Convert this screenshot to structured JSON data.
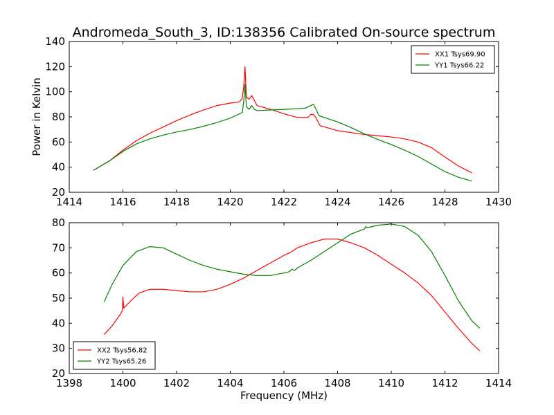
{
  "chart_data": [
    {
      "type": "line",
      "title": "Andromeda_South_3, ID:138356 Calibrated On-source spectrum",
      "xlabel": "",
      "ylabel": "Power in Kelvin",
      "xlim": [
        1414,
        1430
      ],
      "ylim": [
        20,
        140
      ],
      "xticks": [
        1414,
        1416,
        1418,
        1420,
        1422,
        1424,
        1426,
        1428,
        1430
      ],
      "yticks": [
        20,
        40,
        60,
        80,
        100,
        120,
        140
      ],
      "legend": "top-right",
      "series": [
        {
          "name": "XX1 Tsys69.90",
          "color": "#ff0000",
          "points": [
            [
              1414.9,
              37.5
            ],
            [
              1415.5,
              45
            ],
            [
              1416,
              53.5
            ],
            [
              1416.5,
              61
            ],
            [
              1417,
              67
            ],
            [
              1417.5,
              72
            ],
            [
              1418,
              77
            ],
            [
              1418.5,
              81.5
            ],
            [
              1419,
              85.5
            ],
            [
              1419.5,
              89
            ],
            [
              1420,
              91
            ],
            [
              1420.2,
              91.5
            ],
            [
              1420.35,
              92
            ],
            [
              1420.45,
              95
            ],
            [
              1420.5,
              104
            ],
            [
              1420.55,
              120
            ],
            [
              1420.6,
              96
            ],
            [
              1420.7,
              94
            ],
            [
              1420.8,
              97
            ],
            [
              1420.9,
              93
            ],
            [
              1421,
              89
            ],
            [
              1421.5,
              86
            ],
            [
              1422,
              82.5
            ],
            [
              1422.5,
              79.5
            ],
            [
              1422.9,
              79.5
            ],
            [
              1423,
              82
            ],
            [
              1423.1,
              82
            ],
            [
              1423.2,
              79
            ],
            [
              1423.35,
              73
            ],
            [
              1424,
              69
            ],
            [
              1424.5,
              67.5
            ],
            [
              1425,
              66
            ],
            [
              1425.5,
              65
            ],
            [
              1426,
              64
            ],
            [
              1426.5,
              62.5
            ],
            [
              1427,
              60
            ],
            [
              1427.5,
              55.5
            ],
            [
              1428,
              48
            ],
            [
              1428.5,
              41
            ],
            [
              1429,
              35.5
            ]
          ]
        },
        {
          "name": "YY1 Tsys66.22",
          "color": "#008000",
          "points": [
            [
              1414.9,
              37.5
            ],
            [
              1415.5,
              45
            ],
            [
              1416,
              52.5
            ],
            [
              1416.5,
              58.5
            ],
            [
              1417,
              62.5
            ],
            [
              1417.5,
              65.5
            ],
            [
              1418,
              68
            ],
            [
              1418.5,
              70
            ],
            [
              1419,
              72.5
            ],
            [
              1419.5,
              75.5
            ],
            [
              1420,
              79
            ],
            [
              1420.3,
              82
            ],
            [
              1420.45,
              83.5
            ],
            [
              1420.5,
              92
            ],
            [
              1420.55,
              106
            ],
            [
              1420.6,
              88
            ],
            [
              1420.7,
              86
            ],
            [
              1420.8,
              89
            ],
            [
              1420.9,
              86
            ],
            [
              1421,
              85
            ],
            [
              1421.5,
              85.5
            ],
            [
              1422,
              86
            ],
            [
              1422.5,
              86.5
            ],
            [
              1422.8,
              87
            ],
            [
              1423,
              89
            ],
            [
              1423.1,
              90
            ],
            [
              1423.2,
              86
            ],
            [
              1423.3,
              81
            ],
            [
              1424,
              76
            ],
            [
              1424.5,
              71.5
            ],
            [
              1425,
              66.5
            ],
            [
              1425.5,
              62
            ],
            [
              1426,
              58
            ],
            [
              1426.5,
              53.5
            ],
            [
              1427,
              48.5
            ],
            [
              1427.5,
              42.5
            ],
            [
              1428,
              36.5
            ],
            [
              1428.5,
              32
            ],
            [
              1429,
              29
            ]
          ]
        }
      ]
    },
    {
      "type": "line",
      "title": "",
      "xlabel": "Frequency (MHz)",
      "ylabel": "",
      "xlim": [
        1398,
        1414
      ],
      "ylim": [
        20,
        80
      ],
      "xticks": [
        1398,
        1400,
        1402,
        1404,
        1406,
        1408,
        1410,
        1412,
        1414
      ],
      "yticks": [
        20,
        30,
        40,
        50,
        60,
        70,
        80
      ],
      "legend": "bottom-left",
      "series": [
        {
          "name": "XX2 Tsys56.82",
          "color": "#ff0000",
          "points": [
            [
              1399.3,
              35.5
            ],
            [
              1399.6,
              39
            ],
            [
              1399.9,
              43.5
            ],
            [
              1399.98,
              45
            ],
            [
              1400,
              50.5
            ],
            [
              1400.03,
              46
            ],
            [
              1400.3,
              49
            ],
            [
              1400.6,
              52
            ],
            [
              1401,
              53.5
            ],
            [
              1401.5,
              53.5
            ],
            [
              1402,
              53
            ],
            [
              1402.5,
              52.5
            ],
            [
              1403,
              52.5
            ],
            [
              1403.5,
              53.5
            ],
            [
              1404,
              55.5
            ],
            [
              1404.5,
              58
            ],
            [
              1405,
              61
            ],
            [
              1405.5,
              64
            ],
            [
              1406,
              67
            ],
            [
              1406.3,
              68.5
            ],
            [
              1406.35,
              69
            ],
            [
              1406.5,
              70
            ],
            [
              1407,
              72
            ],
            [
              1407.5,
              73.5
            ],
            [
              1408,
              73.5
            ],
            [
              1408.5,
              72
            ],
            [
              1409,
              70
            ],
            [
              1409.5,
              67
            ],
            [
              1410,
              63.5
            ],
            [
              1410.5,
              60
            ],
            [
              1411,
              56
            ],
            [
              1411.5,
              51
            ],
            [
              1412,
              44.5
            ],
            [
              1412.5,
              38
            ],
            [
              1413,
              32
            ],
            [
              1413.3,
              29
            ]
          ]
        },
        {
          "name": "YY2 Tsys65.26",
          "color": "#008000",
          "points": [
            [
              1399.3,
              48.5
            ],
            [
              1399.6,
              55.5
            ],
            [
              1400,
              63
            ],
            [
              1400.5,
              68.5
            ],
            [
              1401,
              70.5
            ],
            [
              1401.5,
              70
            ],
            [
              1402,
              67.5
            ],
            [
              1402.5,
              65
            ],
            [
              1403,
              63
            ],
            [
              1403.5,
              61.5
            ],
            [
              1404,
              60.5
            ],
            [
              1404.5,
              59.5
            ],
            [
              1405,
              59
            ],
            [
              1405.5,
              59
            ],
            [
              1406,
              60
            ],
            [
              1406.2,
              60.5
            ],
            [
              1406.3,
              61.5
            ],
            [
              1406.4,
              61
            ],
            [
              1406.5,
              62
            ],
            [
              1407,
              65
            ],
            [
              1407.5,
              68.5
            ],
            [
              1408,
              72
            ],
            [
              1408.5,
              75.5
            ],
            [
              1409,
              77.5
            ],
            [
              1409.05,
              78.5
            ],
            [
              1409.1,
              78
            ],
            [
              1409.5,
              79
            ],
            [
              1410,
              79.5
            ],
            [
              1410.5,
              78.5
            ],
            [
              1411,
              75
            ],
            [
              1411.5,
              68.5
            ],
            [
              1412,
              59
            ],
            [
              1412.5,
              49
            ],
            [
              1413,
              41
            ],
            [
              1413.3,
              38
            ]
          ]
        }
      ]
    }
  ]
}
